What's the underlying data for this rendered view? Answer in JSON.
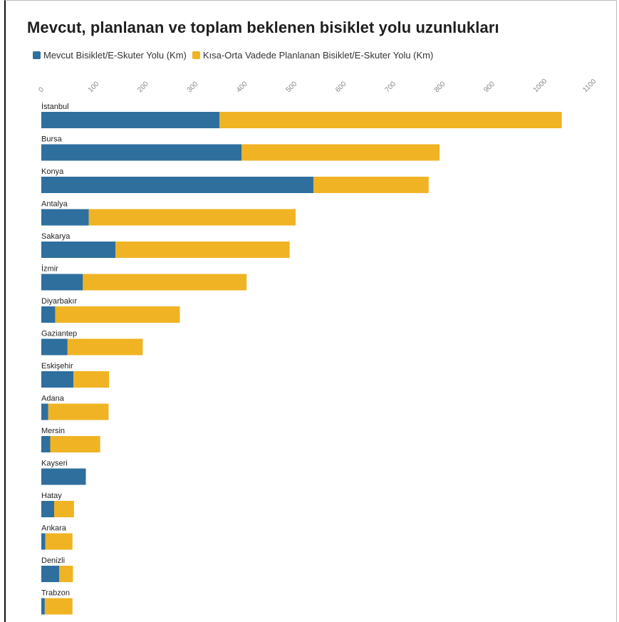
{
  "colors": {
    "existing": "#2e6f9e",
    "planned": "#f0b323"
  },
  "legend": [
    {
      "label": "Mevcut Bisiklet/E-Skuter Yolu (Km)",
      "color": "#2e6f9e"
    },
    {
      "label": "Kısa-Orta Vadede Planlanan Bisiklet/E-Skuter Yolu (Km)",
      "color": "#f0b323"
    }
  ],
  "chart_data": {
    "type": "bar",
    "orientation": "horizontal",
    "stacked": true,
    "title": "Mevcut, planlanan ve toplam beklenen bisiklet yolu uzunlukları",
    "xlim": [
      0,
      1100
    ],
    "xticks": [
      0,
      100,
      200,
      300,
      400,
      500,
      600,
      700,
      800,
      900,
      1000,
      1100
    ],
    "grid": false,
    "legend_position": "top-left",
    "categories": [
      "İstanbul",
      "Bursa",
      "Konya",
      "Antalya",
      "Sakarya",
      "İzmir",
      "Diyarbakır",
      "Gaziantep",
      "Eskişehir",
      "Adana",
      "Mersin",
      "Kayseri",
      "Hatay",
      "Ankara",
      "Denizli",
      "Trabzon"
    ],
    "series": [
      {
        "name": "Mevcut Bisiklet/E-Skuter Yolu (Km)",
        "values": [
          360,
          405,
          550,
          96,
          150,
          84,
          28,
          53,
          65,
          14,
          18,
          90,
          26,
          8,
          36,
          7
        ]
      },
      {
        "name": "Kısa-Orta Vadede Planlanan Bisiklet/E-Skuter Yolu (Km)",
        "values": [
          692,
          400,
          233,
          418,
          352,
          331,
          252,
          152,
          72,
          122,
          101,
          0,
          40,
          55,
          28,
          56
        ]
      }
    ]
  }
}
